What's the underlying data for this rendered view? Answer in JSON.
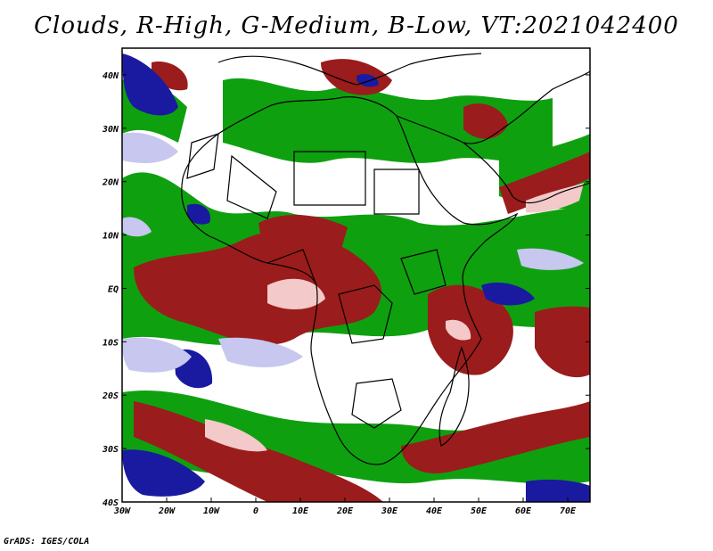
{
  "title": "Clouds, R-High, G-Medium, B-Low, VT:2021042400",
  "footer": "GrADS: IGES/COLA",
  "colors": {
    "high_cloud": "#9b1c1c",
    "high_cloud_light": "#f3c9c9",
    "medium_cloud": "#0fa00f",
    "low_cloud": "#1a1aa0",
    "low_cloud_light": "#c7c7f0",
    "clear": "#ffffff",
    "border": "#000000"
  },
  "axes": {
    "lon_range": [
      -30,
      75
    ],
    "lat_range": [
      -40,
      45
    ],
    "lon_ticks": [
      "30W",
      "20W",
      "10W",
      "0",
      "10E",
      "20E",
      "30E",
      "40E",
      "50E",
      "60E",
      "70E"
    ],
    "lat_ticks": [
      "40N",
      "30N",
      "20N",
      "10N",
      "EQ",
      "10S",
      "20S",
      "30S",
      "40S"
    ]
  }
}
